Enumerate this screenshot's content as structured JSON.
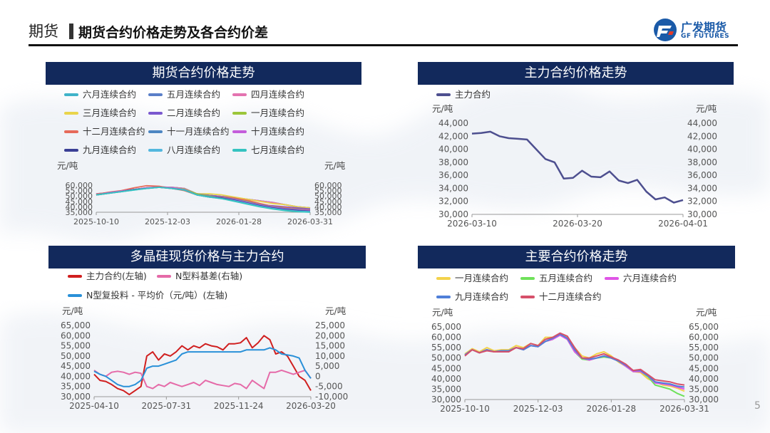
{
  "header": {
    "section": "期货",
    "title": "期货合约价格走势及各合约价差",
    "logo_cn": "广发期货",
    "logo_en": "GF FUTURES"
  },
  "page_number": "5",
  "chart_data": [
    {
      "id": "c1",
      "type": "line",
      "title": "期货合约价格走势",
      "ylabel": "元/吨",
      "ylabel_right": "元/吨",
      "xticks": [
        "2025-10-10",
        "2025-12-03",
        "2026-01-28",
        "2026-03-31"
      ],
      "yticks": [
        "60,000",
        "55,000",
        "50,000",
        "45,000",
        "40,000",
        "35,000"
      ],
      "ylim": [
        35000,
        60000
      ],
      "series": [
        {
          "name": "六月连续合约",
          "color": "#3fb3c9",
          "start": 1,
          "values": [
            52000,
            53000,
            54500,
            56000,
            57500,
            58200,
            58000,
            57000,
            52000,
            50500,
            49500,
            48500,
            47000,
            45500,
            44000,
            42000,
            40000,
            39000
          ]
        },
        {
          "name": "五月连续合约",
          "color": "#5a7fc8",
          "start": 1,
          "values": [
            52000,
            53000,
            54500,
            56000,
            57500,
            58200,
            58000,
            57000,
            52000,
            50500,
            49500,
            48500,
            47000,
            45500,
            44000,
            42000,
            40000,
            39000
          ]
        },
        {
          "name": "四月连续合约",
          "color": "#e473b0",
          "start": 1,
          "values": [
            52000,
            53000,
            54500,
            56000,
            57500,
            58200,
            58000,
            57000,
            52000,
            50500,
            49500,
            48500,
            47000,
            45500,
            44000,
            42000,
            40000,
            39000
          ]
        },
        {
          "name": "三月连续合约",
          "color": "#e9d44a",
          "start": 1,
          "values": [
            51500,
            53000,
            54500,
            56000,
            57500,
            58000,
            57500,
            56000,
            52000,
            52000,
            51000,
            49000,
            47000,
            45000,
            43000,
            42000,
            40000,
            39000
          ]
        },
        {
          "name": "二月连续合约",
          "color": "#7b59cf",
          "start": 1,
          "values": [
            51500,
            53000,
            54500,
            56000,
            57500,
            58000,
            57500,
            56000,
            52000,
            50500,
            49500,
            48000,
            45000,
            42000,
            41000,
            40000,
            39000,
            38000
          ]
        },
        {
          "name": "一月连续合约",
          "color": "#9cc63a",
          "start": 1,
          "values": [
            51000,
            52500,
            54500,
            56000,
            57500,
            58000,
            57500,
            56500,
            52000,
            50000,
            48500,
            48000,
            45000,
            42000,
            40000,
            39000,
            38000,
            37000
          ]
        },
        {
          "name": "十二月连续合约",
          "color": "#e66a5a",
          "start": 1,
          "values": [
            51500,
            53500,
            55000,
            57500,
            59500,
            59000,
            57000,
            55000,
            51000,
            49500,
            49000,
            48000,
            46000,
            43000,
            40500,
            39500,
            38000,
            37000
          ]
        },
        {
          "name": "十一月连续合约",
          "color": "#4d86c2",
          "start": 1,
          "values": [
            51000,
            53000,
            54500,
            56000,
            57500,
            58000,
            57500,
            56000,
            51000,
            49500,
            48500,
            47000,
            44500,
            42000,
            40000,
            38500,
            37500,
            36500
          ]
        },
        {
          "name": "十月连续合约",
          "color": "#c45ddb",
          "start": 1,
          "values": [
            51000,
            53000,
            54500,
            56000,
            57500,
            58000,
            57500,
            56000,
            51000,
            49000,
            48000,
            46500,
            44000,
            41500,
            39500,
            38000,
            37000,
            36500
          ]
        },
        {
          "name": "九月连续合约",
          "color": "#3a3f95",
          "start": 1,
          "values": [
            51000,
            52500,
            54000,
            56000,
            57000,
            58000,
            57000,
            55500,
            51000,
            49000,
            48000,
            46000,
            43500,
            41000,
            39000,
            37500,
            36500,
            36000
          ]
        },
        {
          "name": "八月连续合约",
          "color": "#53b7de",
          "start": 1,
          "values": [
            51000,
            52500,
            54000,
            55500,
            57000,
            58000,
            57000,
            55500,
            51000,
            49000,
            47500,
            45500,
            43000,
            40500,
            38500,
            37000,
            36000,
            35500
          ]
        },
        {
          "name": "七月连续合约",
          "color": "#35c3c0",
          "start": 1,
          "values": [
            51000,
            52500,
            54000,
            55500,
            57000,
            58000,
            57000,
            55500,
            51000,
            49000,
            47500,
            45000,
            42500,
            40000,
            38000,
            36500,
            35500,
            35000
          ]
        }
      ]
    },
    {
      "id": "c2",
      "type": "line",
      "title": "主力合约价格走势",
      "ylabel": "元/吨",
      "ylabel_right": "元/吨",
      "xticks": [
        "2026-03-10",
        "2026-03-20",
        "2026-04-01"
      ],
      "yticks": [
        "44,000",
        "42,000",
        "40,000",
        "38,000",
        "36,000",
        "34,000",
        "32,000",
        "30,000"
      ],
      "ylim": [
        30000,
        44000
      ],
      "series": [
        {
          "name": "主力合约",
          "color": "#4d4f8f",
          "values": [
            42400,
            42500,
            42700,
            42000,
            41700,
            41600,
            41500,
            40000,
            38500,
            38000,
            35500,
            35600,
            36700,
            35800,
            35700,
            36600,
            35200,
            34800,
            35300,
            33500,
            32300,
            32600,
            31800,
            32200
          ]
        }
      ]
    },
    {
      "id": "c3",
      "type": "line",
      "title": "多晶硅现货价格与主力合约",
      "ylabel": "元/吨",
      "ylabel_right": "元/吨",
      "xticks": [
        "2025-04-10",
        "2025-07-31",
        "2025-11-24",
        "2026-03-20"
      ],
      "yticks": [
        "65,000",
        "60,000",
        "55,000",
        "50,000",
        "45,000",
        "40,000",
        "35,000",
        "30,000"
      ],
      "yticks_right": [
        "25,000",
        "20,000",
        "15,000",
        "10,000",
        "5,000",
        "0",
        "-5,000",
        "-10,000"
      ],
      "ylim": [
        30000,
        65000
      ],
      "ylim_right": [
        -10000,
        25000
      ],
      "series": [
        {
          "name": "主力合约(左轴)",
          "color": "#d01f1f",
          "axis": "left",
          "values": [
            41000,
            38000,
            37500,
            36000,
            34000,
            33000,
            31000,
            33000,
            35000,
            50000,
            52000,
            48000,
            51000,
            50000,
            52000,
            55000,
            53000,
            55000,
            54000,
            56000,
            55000,
            54500,
            53000,
            56000,
            56000,
            56500,
            59000,
            54000,
            56500,
            60000,
            58000,
            51000,
            52000,
            50000,
            45000,
            40000,
            38000,
            33000
          ]
        },
        {
          "name": "N型料基差(右轴)",
          "color": "#e56aa8",
          "axis": "right",
          "values": [
            3000,
            1000,
            0,
            2000,
            2500,
            2000,
            1000,
            2000,
            1500,
            -5000,
            -6000,
            -4000,
            -5000,
            -3000,
            -4000,
            -5000,
            -4000,
            -3000,
            -4500,
            -2000,
            -3000,
            -4000,
            -4500,
            -5000,
            -3500,
            -4000,
            -6000,
            -2000,
            -4000,
            -6000,
            2000,
            2000,
            3000,
            2000,
            1000,
            2000,
            3000,
            -1000
          ]
        },
        {
          "name": "N型复投料 - 平均价（元/吨）(左轴)",
          "color": "#2990d8",
          "axis": "left",
          "values": [
            42500,
            41000,
            40000,
            38000,
            36000,
            35000,
            35000,
            36000,
            38000,
            44000,
            45000,
            45000,
            46000,
            47000,
            48000,
            51000,
            52000,
            52000,
            52000,
            52000,
            52000,
            52000,
            52000,
            52000,
            52000,
            52000,
            53000,
            53000,
            53000,
            53000,
            54000,
            53000,
            51000,
            50500,
            50000,
            49000,
            43000,
            39000
          ]
        }
      ]
    },
    {
      "id": "c4",
      "type": "line",
      "title": "主要合约价格走势",
      "ylabel": "元/吨",
      "ylabel_right": "元/吨",
      "xticks": [
        "2025-10-10",
        "2025-12-03",
        "2026-01-28",
        "2026-03-31"
      ],
      "yticks": [
        "65,000",
        "60,000",
        "55,000",
        "50,000",
        "45,000",
        "40,000",
        "35,000",
        "30,000"
      ],
      "ylim": [
        30000,
        65000
      ],
      "series": [
        {
          "name": "一月连续合约",
          "color": "#f3d24b",
          "values": [
            52000,
            54500,
            53000,
            55000,
            53500,
            54000,
            54000,
            56000,
            55000,
            57000,
            56000,
            60000,
            60000,
            61000,
            60000,
            55000,
            51000,
            50000,
            52000,
            53000,
            51000,
            48000,
            46000,
            43500,
            43000,
            40000,
            38500,
            37000,
            36500,
            35500,
            34000
          ]
        },
        {
          "name": "五月连续合约",
          "color": "#6fe15a",
          "values": [
            51500,
            54000,
            52500,
            54000,
            53000,
            53500,
            53500,
            55000,
            54000,
            56000,
            55500,
            58000,
            59000,
            61500,
            59000,
            53000,
            49500,
            49000,
            50000,
            50500,
            50000,
            48500,
            46000,
            43500,
            43500,
            41000,
            37000,
            36000,
            35000,
            33000,
            31500
          ]
        },
        {
          "name": "六月连续合约",
          "color": "#df55e6",
          "values": [
            51500,
            54000,
            52500,
            54000,
            53000,
            53500,
            53500,
            55000,
            54000,
            56000,
            55500,
            58000,
            59000,
            61000,
            59000,
            53000,
            50000,
            49000,
            50000,
            51000,
            50000,
            48500,
            46000,
            43500,
            43500,
            41500,
            38000,
            37500,
            37000,
            36000,
            35000
          ]
        },
        {
          "name": "九月连续合约",
          "color": "#4f7fd8",
          "values": [
            51500,
            54000,
            52500,
            54000,
            53000,
            53500,
            53500,
            55000,
            54000,
            56000,
            55500,
            58000,
            59500,
            61500,
            59500,
            54000,
            50000,
            49500,
            50000,
            51000,
            50000,
            48500,
            46500,
            44000,
            44000,
            41500,
            38500,
            38000,
            37500,
            36500,
            36000
          ]
        },
        {
          "name": "十二月连续合约",
          "color": "#d6506a",
          "values": [
            51000,
            54000,
            52500,
            53500,
            53000,
            53000,
            53000,
            55000,
            54500,
            57000,
            56000,
            59000,
            60000,
            62000,
            60500,
            55000,
            50000,
            50000,
            51000,
            52000,
            50500,
            49000,
            47000,
            44000,
            44500,
            42000,
            39500,
            39000,
            38500,
            37500,
            37000
          ]
        }
      ]
    }
  ]
}
